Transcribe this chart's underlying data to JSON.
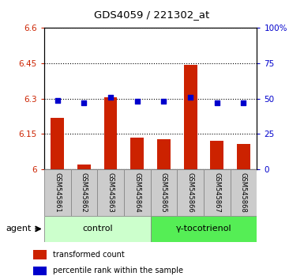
{
  "title": "GDS4059 / 221302_at",
  "samples": [
    "GSM545861",
    "GSM545862",
    "GSM545863",
    "GSM545864",
    "GSM545865",
    "GSM545866",
    "GSM545867",
    "GSM545868"
  ],
  "bar_values": [
    6.22,
    6.02,
    6.305,
    6.135,
    6.128,
    6.445,
    6.122,
    6.108
  ],
  "dot_values_pct": [
    49,
    47,
    51,
    48,
    48,
    51,
    47,
    47
  ],
  "bar_color": "#cc2200",
  "dot_color": "#0000cc",
  "ylim_left": [
    6.0,
    6.6
  ],
  "ylim_right": [
    0,
    100
  ],
  "yticks_left": [
    6.0,
    6.15,
    6.3,
    6.45,
    6.6
  ],
  "yticks_right": [
    0,
    25,
    50,
    75,
    100
  ],
  "ytick_labels_left": [
    "6",
    "6.15",
    "6.3",
    "6.45",
    "6.6"
  ],
  "ytick_labels_right": [
    "0",
    "25",
    "50",
    "75",
    "100%"
  ],
  "groups": [
    {
      "label": "control",
      "indices": [
        0,
        1,
        2,
        3
      ],
      "facecolor": "#ccffcc",
      "edgecolor": "#888888"
    },
    {
      "label": "γ-tocotrienol",
      "indices": [
        4,
        5,
        6,
        7
      ],
      "facecolor": "#55ee55",
      "edgecolor": "#888888"
    }
  ],
  "agent_label": "agent",
  "legend_items": [
    {
      "color": "#cc2200",
      "label": "transformed count"
    },
    {
      "color": "#0000cc",
      "label": "percentile rank within the sample"
    }
  ],
  "tick_color_left": "#cc2200",
  "tick_color_right": "#0000cc",
  "label_box_color": "#cccccc",
  "label_box_edge": "#888888",
  "bar_width": 0.5
}
